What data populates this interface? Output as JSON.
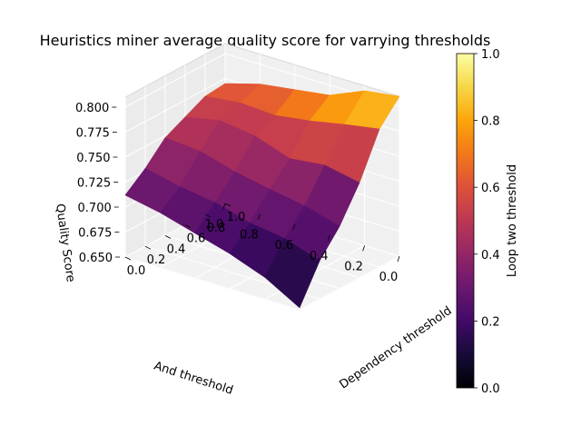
{
  "chart_data": {
    "type": "surface3d",
    "title": "Heuristics miner average quality score for varrying thresholds",
    "xlabel": "Dependency threshold",
    "ylabel": "And threshold",
    "zlabel": "Quality Score",
    "colorbar_label": "Loop two threshold",
    "colormap": "inferno",
    "xlim": [
      0.0,
      1.0
    ],
    "ylim": [
      0.0,
      1.0
    ],
    "zlim": [
      0.65,
      0.81
    ],
    "x_ticks": [
      "0.0",
      "0.2",
      "0.4",
      "0.6",
      "0.8",
      "1.0"
    ],
    "y_ticks": [
      "0.0",
      "0.2",
      "0.4",
      "0.6",
      "0.8",
      "1.0"
    ],
    "z_ticks": [
      "0.650",
      "0.675",
      "0.700",
      "0.725",
      "0.750",
      "0.775",
      "0.800"
    ],
    "colorbar_ticks": [
      "0.0",
      "0.2",
      "0.4",
      "0.6",
      "0.8",
      "1.0"
    ],
    "grid": true,
    "x": [
      0.0,
      0.2,
      0.4,
      0.6,
      0.8,
      1.0
    ],
    "y": [
      0.0,
      0.2,
      0.4,
      0.6,
      0.8,
      1.0
    ],
    "z": [
      [
        0.652,
        0.688,
        0.712,
        0.745,
        0.788,
        0.81
      ],
      [
        0.672,
        0.7,
        0.722,
        0.752,
        0.782,
        0.805
      ],
      [
        0.685,
        0.705,
        0.728,
        0.748,
        0.775,
        0.79
      ],
      [
        0.695,
        0.715,
        0.735,
        0.76,
        0.77,
        0.785
      ],
      [
        0.705,
        0.72,
        0.745,
        0.765,
        0.772,
        0.78
      ],
      [
        0.712,
        0.728,
        0.748,
        0.758,
        0.768,
        0.77
      ]
    ],
    "loop_two_threshold": [
      [
        0.05,
        0.2,
        0.25,
        0.3,
        0.75,
        0.95
      ],
      [
        0.1,
        0.22,
        0.32,
        0.4,
        0.7,
        0.9
      ],
      [
        0.15,
        0.25,
        0.35,
        0.45,
        0.65,
        0.85
      ],
      [
        0.2,
        0.3,
        0.38,
        0.48,
        0.55,
        0.75
      ],
      [
        0.25,
        0.32,
        0.42,
        0.5,
        0.55,
        0.7
      ],
      [
        0.3,
        0.35,
        0.45,
        0.52,
        0.55,
        0.65
      ]
    ]
  }
}
